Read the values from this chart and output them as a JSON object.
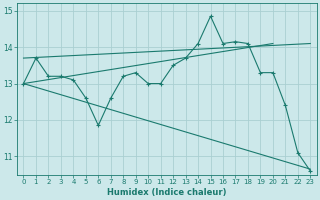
{
  "xlabel": "Humidex (Indice chaleur)",
  "bg_color": "#cce8ea",
  "grid_color": "#aacfd2",
  "line_color": "#1a7a6e",
  "xlim": [
    -0.5,
    23.5
  ],
  "ylim": [
    10.5,
    15.2
  ],
  "yticks": [
    11,
    12,
    13,
    14,
    15
  ],
  "xticks": [
    0,
    1,
    2,
    3,
    4,
    5,
    6,
    7,
    8,
    9,
    10,
    11,
    12,
    13,
    14,
    15,
    16,
    17,
    18,
    19,
    20,
    21,
    22,
    23
  ],
  "zigzag": {
    "x": [
      0,
      1,
      2,
      3,
      4,
      5,
      6,
      7,
      8,
      9,
      10,
      11,
      12,
      13,
      14,
      15,
      16,
      17,
      18,
      19,
      20,
      21,
      22,
      23
    ],
    "y": [
      13.0,
      13.7,
      13.2,
      13.2,
      13.1,
      12.6,
      11.85,
      12.6,
      13.2,
      13.3,
      13.0,
      13.0,
      13.5,
      13.7,
      14.1,
      14.85,
      14.1,
      14.15,
      14.1,
      13.3,
      13.3,
      12.4,
      11.1,
      10.6
    ]
  },
  "trend1": {
    "x": [
      0,
      23
    ],
    "y": [
      13.0,
      10.65
    ]
  },
  "trend2": {
    "x": [
      0,
      20
    ],
    "y": [
      13.0,
      14.1
    ]
  },
  "trend3": {
    "x": [
      0,
      23
    ],
    "y": [
      13.7,
      14.1
    ]
  }
}
